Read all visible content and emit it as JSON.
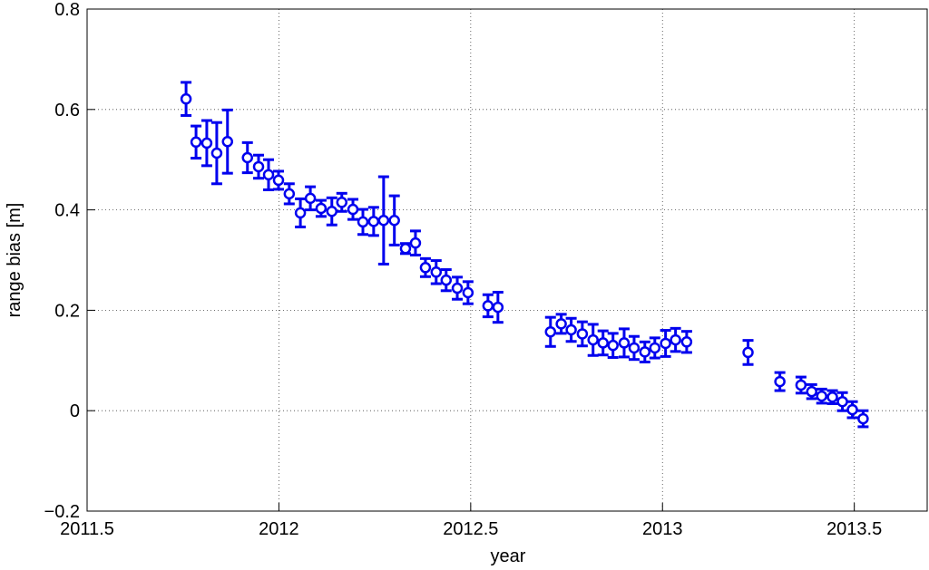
{
  "chart_data": {
    "type": "scatter",
    "xlabel": "year",
    "ylabel": "range bias [m]",
    "color": "#0000ee",
    "grid": true,
    "xlim": [
      2011.5,
      2013.69
    ],
    "ylim": [
      -0.2,
      0.8
    ],
    "xticks": [
      2011.5,
      2012,
      2012.5,
      2013,
      2013.5
    ],
    "yticks": [
      {
        "value": -0.2,
        "label": "−0.2"
      },
      0,
      0.2,
      0.4,
      0.6,
      0.8
    ],
    "x": [
      2011.758,
      2011.784,
      2011.812,
      2011.838,
      2011.866,
      2011.918,
      2011.947,
      2011.973,
      2011.999,
      2012.027,
      2012.056,
      2012.082,
      2012.11,
      2012.138,
      2012.164,
      2012.193,
      2012.219,
      2012.247,
      2012.273,
      2012.301,
      2012.33,
      2012.356,
      2012.382,
      2012.41,
      2012.436,
      2012.465,
      2012.493,
      2012.545,
      2012.571,
      2012.708,
      2012.736,
      2012.762,
      2012.791,
      2012.819,
      2012.845,
      2012.871,
      2012.9,
      2012.926,
      2012.954,
      2012.98,
      2013.008,
      2013.034,
      2013.063,
      2013.223,
      2013.306,
      2013.361,
      2013.389,
      2013.415,
      2013.443,
      2013.469,
      2013.495,
      2013.523
    ],
    "values": [
      0.621,
      0.535,
      0.533,
      0.513,
      0.536,
      0.504,
      0.486,
      0.47,
      0.459,
      0.432,
      0.394,
      0.423,
      0.403,
      0.397,
      0.415,
      0.401,
      0.376,
      0.377,
      0.379,
      0.379,
      0.323,
      0.334,
      0.285,
      0.276,
      0.26,
      0.244,
      0.235,
      0.209,
      0.206,
      0.157,
      0.173,
      0.161,
      0.153,
      0.141,
      0.135,
      0.13,
      0.135,
      0.125,
      0.117,
      0.125,
      0.134,
      0.141,
      0.137,
      0.116,
      0.058,
      0.051,
      0.038,
      0.029,
      0.027,
      0.018,
      0.002,
      -0.016
    ],
    "errors": [
      0.033,
      0.032,
      0.045,
      0.061,
      0.063,
      0.03,
      0.023,
      0.03,
      0.018,
      0.02,
      0.028,
      0.023,
      0.016,
      0.027,
      0.018,
      0.02,
      0.025,
      0.028,
      0.087,
      0.049,
      0.01,
      0.024,
      0.018,
      0.023,
      0.021,
      0.022,
      0.022,
      0.022,
      0.03,
      0.029,
      0.019,
      0.023,
      0.024,
      0.031,
      0.024,
      0.024,
      0.028,
      0.023,
      0.02,
      0.02,
      0.026,
      0.023,
      0.021,
      0.024,
      0.018,
      0.016,
      0.014,
      0.014,
      0.013,
      0.018,
      0.016,
      0.016
    ]
  }
}
